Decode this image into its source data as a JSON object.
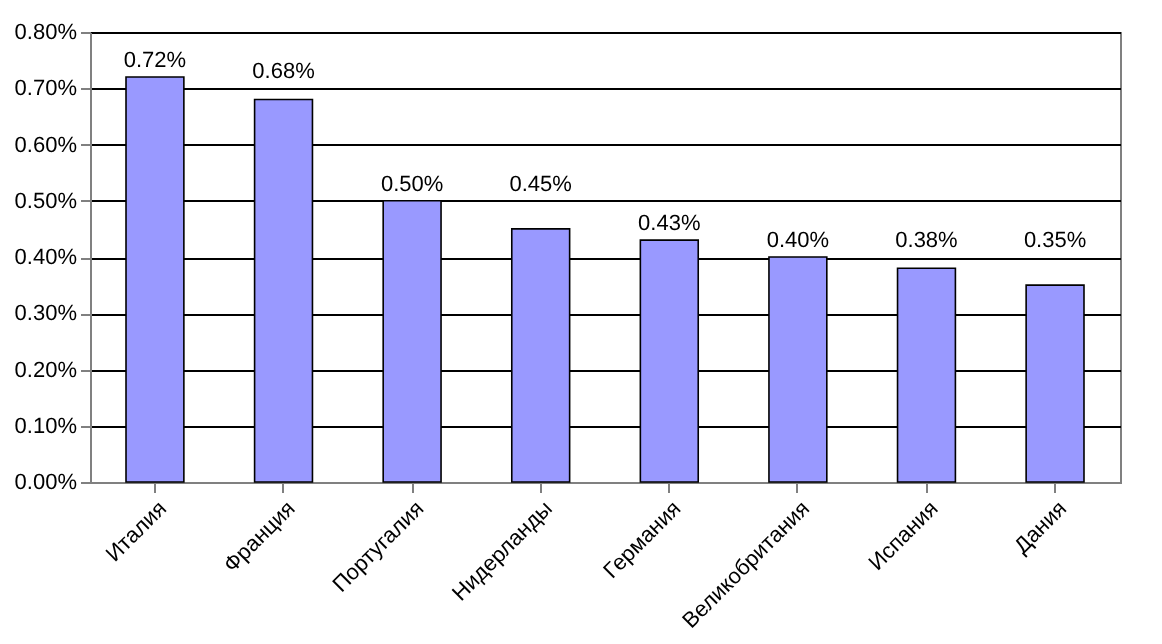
{
  "chart_data": {
    "type": "bar",
    "categories": [
      "Италия",
      "Франция",
      "Португалия",
      "Нидерланды",
      "Германия",
      "Великобритания",
      "Испания",
      "Дания"
    ],
    "values": [
      0.72,
      0.68,
      0.5,
      0.45,
      0.43,
      0.4,
      0.38,
      0.35
    ],
    "value_labels": [
      "0.72%",
      "0.68%",
      "0.50%",
      "0.45%",
      "0.43%",
      "0.40%",
      "0.38%",
      "0.35%"
    ],
    "color": "#9999ff",
    "ylim": [
      0,
      0.8
    ],
    "yticks": [
      {
        "value": 0,
        "label": "0.00%"
      },
      {
        "value": 0.1,
        "label": "0.10%"
      },
      {
        "value": 0.2,
        "label": "0.20%"
      },
      {
        "value": 0.3,
        "label": "0.30%"
      },
      {
        "value": 0.4,
        "label": "0.40%"
      },
      {
        "value": 0.5,
        "label": "0.50%"
      },
      {
        "value": 0.6,
        "label": "0.60%"
      },
      {
        "value": 0.7,
        "label": "0.70%"
      },
      {
        "value": 0.8,
        "label": "0.80%"
      }
    ],
    "grid": "y"
  }
}
